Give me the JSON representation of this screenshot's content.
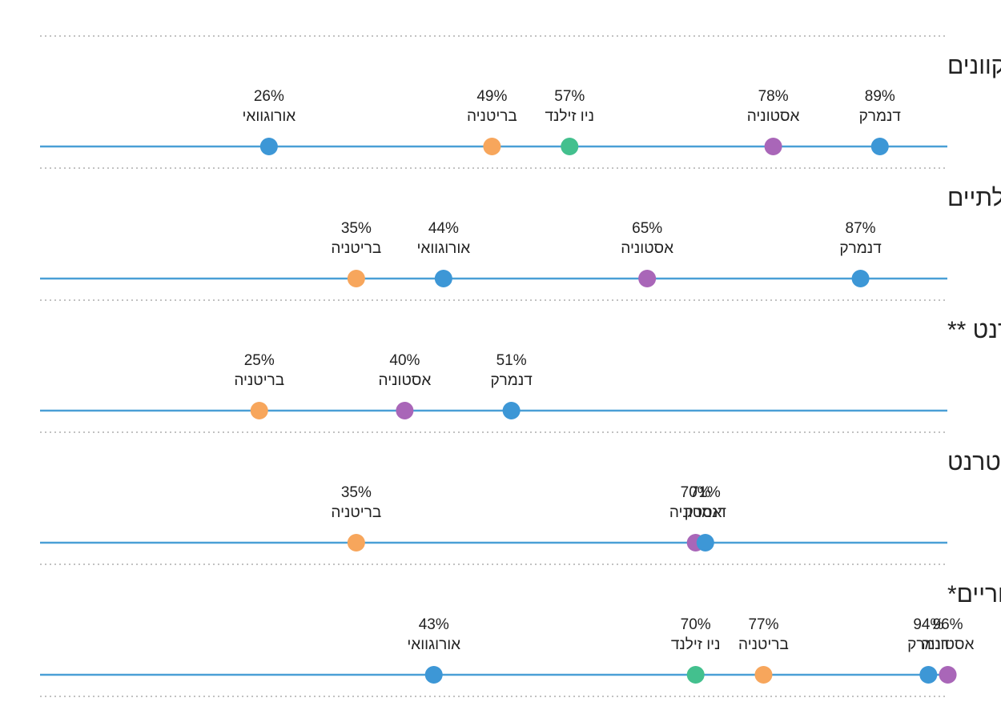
{
  "colors": {
    "axis": "#4a9fd6",
    "separator": "#c2c2c2",
    "text": "#222222"
  },
  "country_colors": {
    "דנמרק": "#3d97d6",
    "אורוגוואי": "#3d97d6",
    "בריטניה": "#f7a65c",
    "ניו זילנד": "#43c08e",
    "אסטוניה": "#a966b8"
  },
  "chart_data": [
    {
      "type": "scatter",
      "title": "היקף השימוש בשירותים ציבוריים מקוונים",
      "xlim": [
        0,
        100
      ],
      "points": [
        {
          "label": "אורוגוואי",
          "value": 26,
          "value_label": "26%"
        },
        {
          "label": "בריטניה",
          "value": 49,
          "value_label": "49%"
        },
        {
          "label": "ניו זילנד",
          "value": 57,
          "value_label": "57%"
        },
        {
          "label": "אסטוניה",
          "value": 78,
          "value_label": "78%"
        },
        {
          "label": "דנמרק",
          "value": 89,
          "value_label": "89%"
        }
      ]
    },
    {
      "type": "scatter",
      "title": "היקף השימוש באתרים הממשלתיים",
      "xlim": [
        0,
        100
      ],
      "points": [
        {
          "label": "בריטניה",
          "value": 35,
          "value_label": "35%"
        },
        {
          "label": "אורוגוואי",
          "value": 44,
          "value_label": "44%"
        },
        {
          "label": "אסטוניה",
          "value": 65,
          "value_label": "65%"
        },
        {
          "label": "דנמרק",
          "value": 87,
          "value_label": "87%"
        }
      ]
    },
    {
      "type": "scatter",
      "title": "היקף הורדת הטפסים באינטרנט **",
      "xlim": [
        0,
        100
      ],
      "points": [
        {
          "label": "בריטניה",
          "value": 25,
          "value_label": "25%"
        },
        {
          "label": "אסטוניה",
          "value": 40,
          "value_label": "40%"
        },
        {
          "label": "דנמרק",
          "value": 51,
          "value_label": "51%"
        }
      ]
    },
    {
      "type": "scatter",
      "title": "היקף שליחת הטפסים באינטרנט",
      "xlim": [
        0,
        100
      ],
      "points": [
        {
          "label": "בריטניה",
          "value": 35,
          "value_label": "35%"
        },
        {
          "label": "אסטוניה",
          "value": 70,
          "value_label": "70%"
        },
        {
          "label": "דנמרק",
          "value": 71,
          "value_label": "71%"
        }
      ]
    },
    {
      "type": "scatter",
      "title": "שירותים מקוונים מסך השירותים הציבוריים*",
      "xlim": [
        0,
        100
      ],
      "points": [
        {
          "label": "אורוגוואי",
          "value": 43,
          "value_label": "43%"
        },
        {
          "label": "ניו זילנד",
          "value": 70,
          "value_label": "70%"
        },
        {
          "label": "בריטניה",
          "value": 77,
          "value_label": "77%"
        },
        {
          "label": "דנמרק",
          "value": 94,
          "value_label": "94%"
        },
        {
          "label": "אסטוניה",
          "value": 96,
          "value_label": "96%"
        }
      ]
    }
  ]
}
